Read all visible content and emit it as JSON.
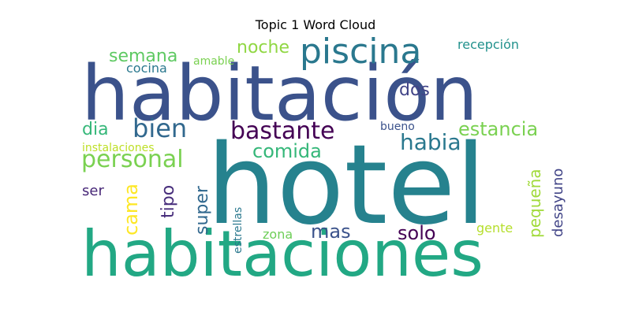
{
  "chart_data": {
    "type": "wordcloud",
    "title": "Topic 1 Word Cloud",
    "words": [
      {
        "text": "hotel",
        "color": "#26828e"
      },
      {
        "text": "habitación",
        "color": "#3b528b"
      },
      {
        "text": "habitaciones",
        "color": "#22a884"
      },
      {
        "text": "piscina",
        "color": "#2a788e"
      },
      {
        "text": "bastante",
        "color": "#440154"
      },
      {
        "text": "bien",
        "color": "#31688e"
      },
      {
        "text": "personal",
        "color": "#7ad151"
      },
      {
        "text": "habia",
        "color": "#2a788e"
      },
      {
        "text": "comida",
        "color": "#35b779"
      },
      {
        "text": "estancia",
        "color": "#7ad151"
      },
      {
        "text": "noche",
        "color": "#90d743"
      },
      {
        "text": "semana",
        "color": "#5ec962"
      },
      {
        "text": "dia",
        "color": "#35b779"
      },
      {
        "text": "dos",
        "color": "#414487"
      },
      {
        "text": "mas",
        "color": "#3b528b"
      },
      {
        "text": "solo",
        "color": "#440154"
      },
      {
        "text": "cocina",
        "color": "#2a788e"
      },
      {
        "text": "amable",
        "color": "#7ad151"
      },
      {
        "text": "recepción",
        "color": "#21918c"
      },
      {
        "text": "bueno",
        "color": "#3b528b"
      },
      {
        "text": "instalaciones",
        "color": "#bddf26"
      },
      {
        "text": "ser",
        "color": "#482878"
      },
      {
        "text": "cama",
        "color": "#fde725"
      },
      {
        "text": "tipo",
        "color": "#472d7b"
      },
      {
        "text": "super",
        "color": "#31688e"
      },
      {
        "text": "estrellas",
        "color": "#2a788e"
      },
      {
        "text": "zona",
        "color": "#6ece58"
      },
      {
        "text": "gente",
        "color": "#b5de2b"
      },
      {
        "text": "pequeña",
        "color": "#a0da39"
      },
      {
        "text": "desayuno",
        "color": "#414487"
      }
    ]
  }
}
